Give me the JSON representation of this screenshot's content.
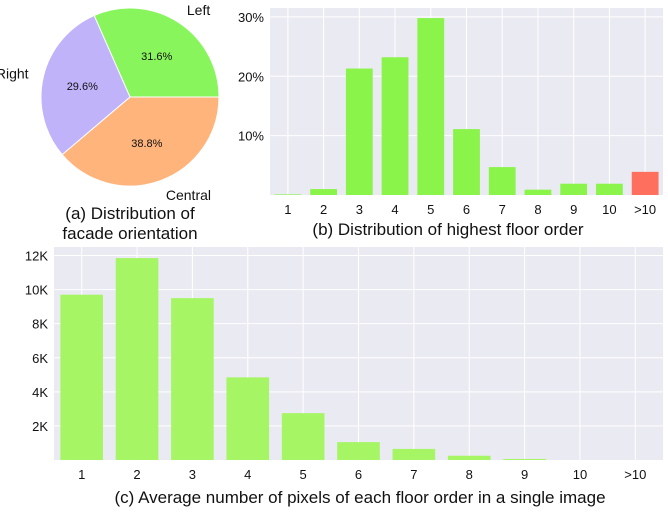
{
  "colors": {
    "panel_bg": "#eaeaf2",
    "grid": "#ffffff",
    "bar_green": "#8af44a",
    "bar_red": "#ff6f5e",
    "bar_light_green": "#a6f565",
    "pie_left": "#89f55c",
    "pie_central": "#ffb47c",
    "pie_right": "#c0b3fa"
  },
  "chart_data": [
    {
      "type": "pie",
      "caption_line1": "(a) Distribution of",
      "caption_line2": "facade orientation",
      "slices": [
        {
          "name": "Left",
          "value": 31.6,
          "label": "31.6%"
        },
        {
          "name": "Central",
          "value": 38.8,
          "label": "38.8%"
        },
        {
          "name": "Right",
          "value": 29.6,
          "label": "29.6%"
        }
      ]
    },
    {
      "type": "bar",
      "caption": "(b) Distribution of highest floor order",
      "categories": [
        "1",
        "2",
        "3",
        "4",
        "5",
        "6",
        "7",
        "8",
        "9",
        "10",
        ">10"
      ],
      "values": [
        0.1,
        1.0,
        21.3,
        23.2,
        29.8,
        11.1,
        4.7,
        0.9,
        1.9,
        1.9,
        3.9
      ],
      "highlight_index": 10,
      "ylim": [
        0,
        31.5
      ],
      "yticks": [
        10,
        20,
        30
      ],
      "ytick_labels": [
        "10%",
        "20%",
        "30%"
      ]
    },
    {
      "type": "bar",
      "caption": "(c) Average number of pixels of each floor order in a single image",
      "categories": [
        "1",
        "2",
        "3",
        "4",
        "5",
        "6",
        "7",
        "8",
        "9",
        "10",
        ">10"
      ],
      "values": [
        9700,
        11850,
        9500,
        4850,
        2750,
        1050,
        650,
        250,
        60,
        0,
        0
      ],
      "ylim": [
        0,
        12500
      ],
      "yticks": [
        2000,
        4000,
        6000,
        8000,
        10000,
        12000
      ],
      "ytick_labels": [
        "2K",
        "4K",
        "6K",
        "8K",
        "10K",
        "12K"
      ]
    }
  ]
}
